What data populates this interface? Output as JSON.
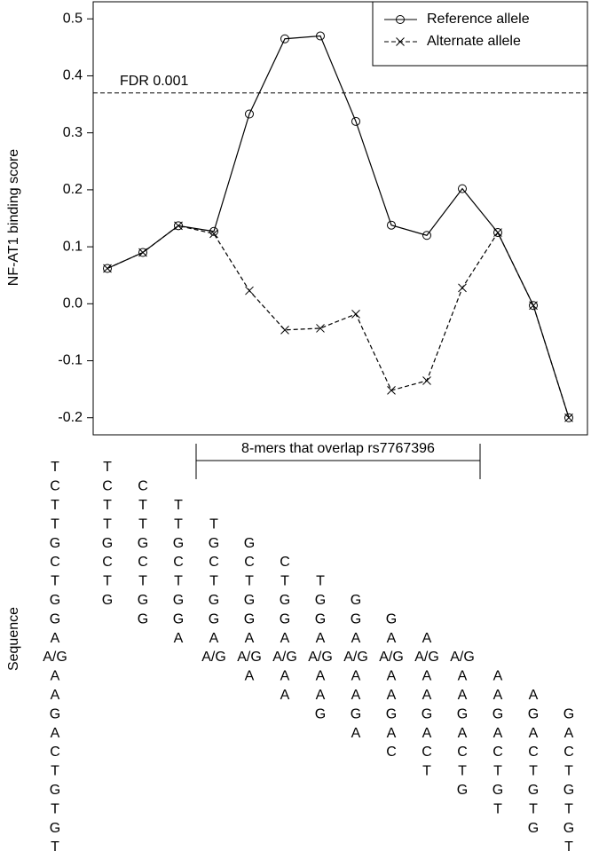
{
  "chart_data": {
    "type": "line",
    "y_label": "NF-AT1 binding score",
    "ylim": [
      -0.23,
      0.53
    ],
    "yticks": [
      -0.2,
      -0.1,
      {
        "value": 0,
        "label": "0.0"
      },
      0.1,
      0.2,
      0.3,
      0.4,
      0.5
    ],
    "series": [
      {
        "name": "Reference allele",
        "color": "#000",
        "marker": "circle",
        "dash": false,
        "values": [
          0.062,
          0.09,
          0.137,
          0.127,
          0.333,
          0.465,
          0.47,
          0.32,
          0.138,
          0.12,
          0.202,
          0.125,
          -0.003,
          -0.2
        ]
      },
      {
        "name": "Alternate allele",
        "color": "#000",
        "marker": "cross",
        "dash": true,
        "values": [
          0.062,
          0.09,
          0.137,
          0.123,
          0.023,
          -0.046,
          -0.043,
          -0.018,
          -0.152,
          -0.135,
          0.028,
          0.125,
          -0.003,
          -0.2
        ]
      }
    ],
    "threshold": {
      "label": "FDR 0.001",
      "value": 0.37
    },
    "legend": "top-right",
    "bracket_label": "8-mers that overlap rs7767396"
  },
  "sequence": {
    "label": "Sequence",
    "full": [
      "T",
      "C",
      "T",
      "T",
      "G",
      "C",
      "T",
      "G",
      "G",
      "A",
      "A/G",
      "A",
      "A",
      "G",
      "A",
      "C",
      "T",
      "G",
      "T",
      "G",
      "T"
    ],
    "kmers": [
      [
        "T",
        "C",
        "T",
        "T",
        "G",
        "C",
        "T",
        "G"
      ],
      [
        "C",
        "T",
        "T",
        "G",
        "C",
        "T",
        "G",
        "G"
      ],
      [
        "T",
        "T",
        "G",
        "C",
        "T",
        "G",
        "G",
        "A"
      ],
      [
        "T",
        "G",
        "C",
        "T",
        "G",
        "G",
        "A",
        "A/G"
      ],
      [
        "G",
        "C",
        "T",
        "G",
        "G",
        "A",
        "A/G",
        "A"
      ],
      [
        "C",
        "T",
        "G",
        "G",
        "A",
        "A/G",
        "A",
        "A"
      ],
      [
        "T",
        "G",
        "G",
        "A",
        "A/G",
        "A",
        "A",
        "G"
      ],
      [
        "G",
        "G",
        "A",
        "A/G",
        "A",
        "A",
        "G",
        "A"
      ],
      [
        "G",
        "A",
        "A/G",
        "A",
        "A",
        "G",
        "A",
        "C"
      ],
      [
        "A",
        "A/G",
        "A",
        "A",
        "G",
        "A",
        "C",
        "T"
      ],
      [
        "A/G",
        "A",
        "A",
        "G",
        "A",
        "C",
        "T",
        "G"
      ],
      [
        "A",
        "A",
        "G",
        "A",
        "C",
        "T",
        "G",
        "T"
      ],
      [
        "A",
        "G",
        "A",
        "C",
        "T",
        "G",
        "T",
        "G"
      ],
      [
        "G",
        "A",
        "C",
        "T",
        "G",
        "T",
        "G",
        "T"
      ]
    ]
  }
}
